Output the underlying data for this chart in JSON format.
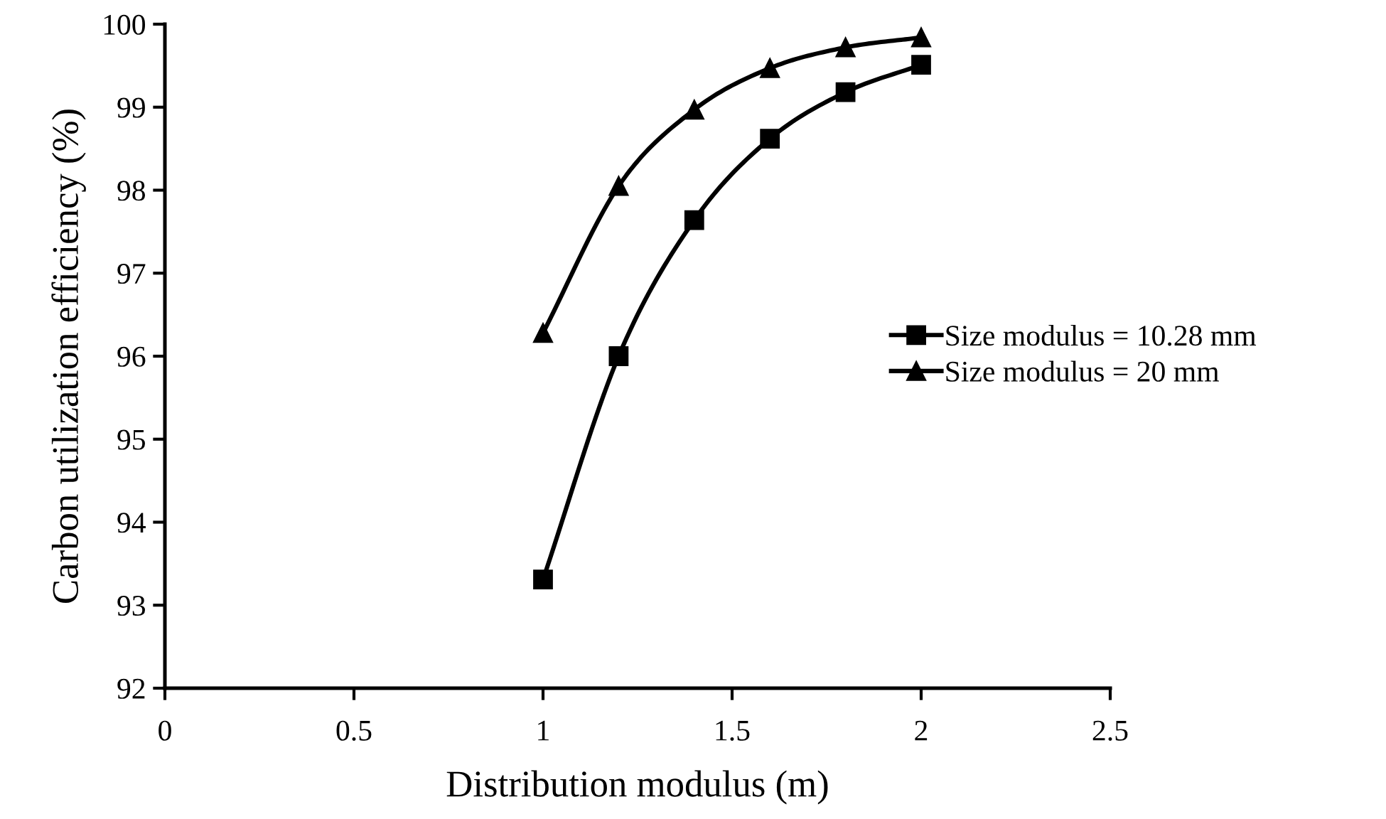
{
  "chart_data": {
    "type": "line",
    "xlabel": "Distribution modulus (m)",
    "ylabel": "Carbon utilization efficiency (%)",
    "x": [
      1,
      1.2,
      1.4,
      1.6,
      1.8,
      2
    ],
    "series": [
      {
        "name": "Size modulus = 10.28 mm",
        "color": "#000000",
        "marker": "square",
        "values": [
          93.31,
          96.0,
          97.64,
          98.62,
          99.18,
          99.51
        ]
      },
      {
        "name": "Size modulus = 20 mm",
        "color": "#000000",
        "marker": "triangle",
        "values": [
          96.28,
          98.05,
          98.97,
          99.47,
          99.72,
          99.84
        ]
      }
    ],
    "xlim": [
      0,
      2.5
    ],
    "xticks": [
      0,
      0.5,
      1,
      1.5,
      2,
      2.5
    ],
    "ylim": [
      92,
      100
    ],
    "yticks": [
      92,
      93,
      94,
      95,
      96,
      97,
      98,
      99,
      100
    ],
    "grid": false,
    "legend": "right",
    "line_style": "solid"
  }
}
